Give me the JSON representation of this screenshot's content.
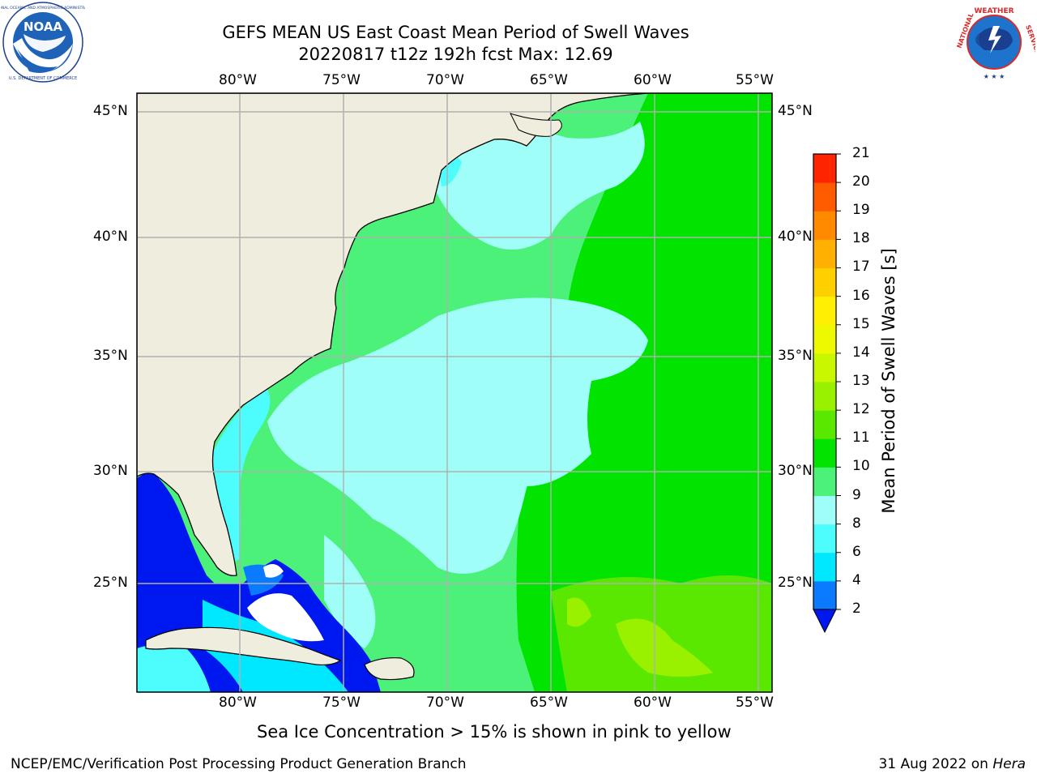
{
  "header": {
    "title_line1": "GEFS MEAN US East Coast Mean Period of Swell Waves",
    "title_line2": "20220817 t12z 192h fcst   Max: 12.69"
  },
  "logos": {
    "left": {
      "name": "noaa-logo",
      "text": "NOAA",
      "ring_text": "NATIONAL OCEANIC AND ATMOSPHERIC ADMINISTRATION · U.S. DEPARTMENT OF COMMERCE"
    },
    "right": {
      "name": "nws-logo",
      "ring_text": "NATIONAL WEATHER SERVICE"
    }
  },
  "map": {
    "lon_labels": [
      "80°W",
      "75°W",
      "70°W",
      "65°W",
      "60°W",
      "55°W"
    ],
    "lat_labels": [
      "45°N",
      "40°N",
      "35°N",
      "30°N",
      "25°N"
    ],
    "land_color": "#efedde",
    "grid_color": "#b0b0b0"
  },
  "colorbar": {
    "label": "Mean Period of Swell Waves [s]",
    "ticks": [
      "2",
      "4",
      "6",
      "8",
      "9",
      "10",
      "11",
      "12",
      "13",
      "14",
      "15",
      "16",
      "17",
      "18",
      "19",
      "20",
      "21"
    ],
    "colors": [
      "#0a7bff",
      "#00e8ff",
      "#4dfdfd",
      "#9ffff8",
      "#4cf17a",
      "#00e400",
      "#5ae700",
      "#99f100",
      "#c9f700",
      "#eef900",
      "#ffef00",
      "#ffd000",
      "#ffb000",
      "#ff8a00",
      "#ff5c00",
      "#ff2500"
    ],
    "extend_color": "#0018f0"
  },
  "note": "Sea Ice Concentration > 15% is shown in pink to yellow",
  "footer": {
    "left": "NCEP/EMC/Verification Post Processing Product Generation Branch",
    "right_date": "31 Aug 2022 on ",
    "right_machine": "Hera"
  }
}
